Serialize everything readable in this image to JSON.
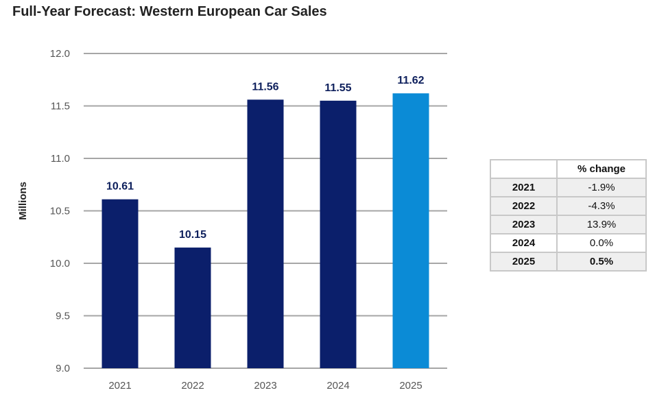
{
  "chart_data": {
    "type": "bar",
    "title": "Full-Year Forecast: Western European Car Sales",
    "ylabel": "Millions",
    "xlabel": "",
    "ylim": [
      9.0,
      12.0
    ],
    "yticks": [
      "9.0",
      "9.5",
      "10.0",
      "10.5",
      "11.0",
      "11.5",
      "12.0"
    ],
    "grid": true,
    "categories": [
      "2021",
      "2022",
      "2023",
      "2024",
      "2025"
    ],
    "values": [
      10.61,
      10.15,
      11.56,
      11.55,
      11.62
    ],
    "value_labels": [
      "10.61",
      "10.15",
      "11.56",
      "11.55",
      "11.62"
    ],
    "colors": {
      "actual": "#0b1f6b",
      "forecast": "#0b8bd6",
      "label": "#0d1f5c",
      "axis_text": "#555555",
      "grid": "#a6a6a6"
    },
    "highlighted_category": "2025"
  },
  "change_table": {
    "header": "% change",
    "rows": [
      {
        "year": "2021",
        "change": "-1.9%"
      },
      {
        "year": "2022",
        "change": "-4.3%"
      },
      {
        "year": "2023",
        "change": "13.9%"
      },
      {
        "year": "2024",
        "change": "0.0%"
      },
      {
        "year": "2025",
        "change": "0.5%"
      }
    ]
  }
}
